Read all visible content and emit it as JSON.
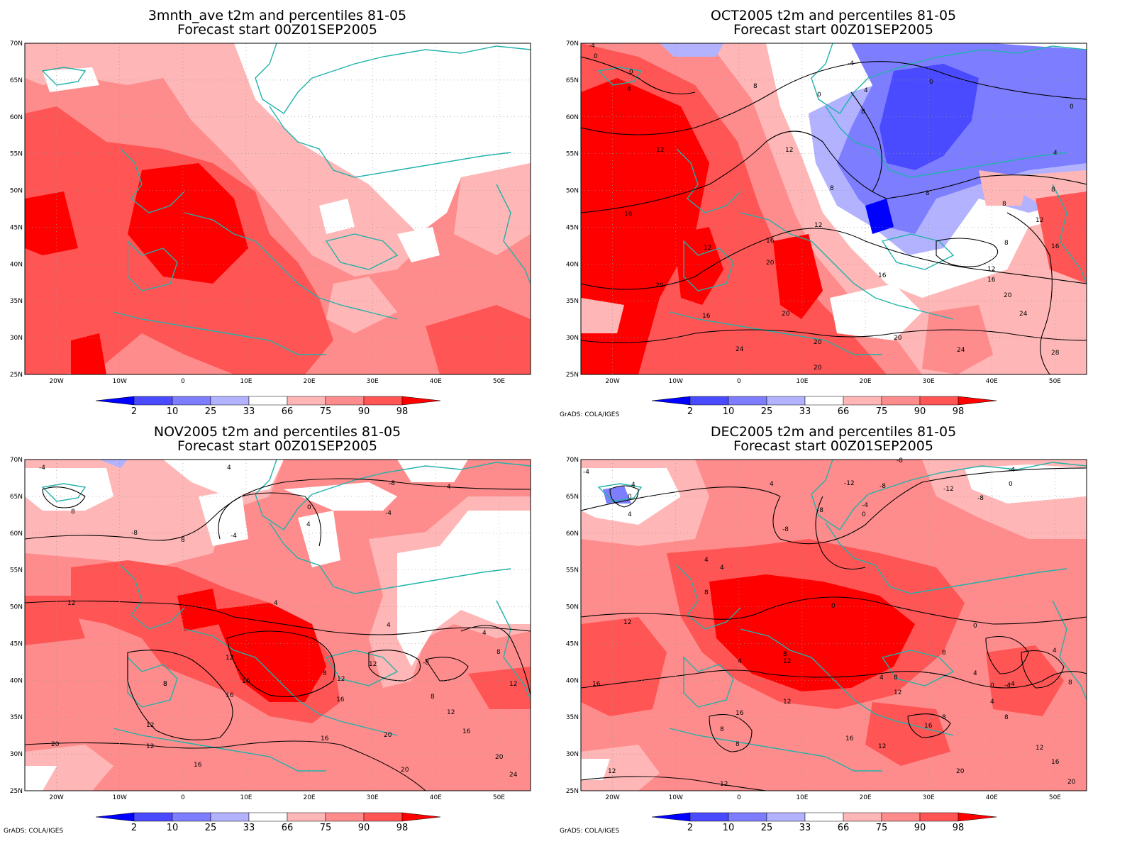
{
  "legend": {
    "labels": [
      "2",
      "10",
      "25",
      "33",
      "66",
      "75",
      "90",
      "98"
    ],
    "colors": [
      "#0000ff",
      "#4a4aff",
      "#7d7dff",
      "#b2b2ff",
      "#ffffff",
      "#ffb6b6",
      "#ff8c8c",
      "#ff5555",
      "#ff0000"
    ]
  },
  "credit": "GrADS: COLA/IGES",
  "lat_labels": [
    "70N",
    "65N",
    "60N",
    "55N",
    "50N",
    "45N",
    "40N",
    "35N",
    "30N",
    "25N"
  ],
  "lon_labels": [
    "20W",
    "10W",
    "0",
    "10E",
    "20E",
    "30E",
    "40E",
    "50E"
  ],
  "panels": [
    {
      "id": "3mnth",
      "title1": "3mnth_ave t2m and percentiles 81-05",
      "title2": "Forecast start 00Z01SEP2005",
      "show_credit": false,
      "contour_labels": []
    },
    {
      "id": "oct",
      "title1": "OCT2005 t2m and percentiles 81-05",
      "title2": "Forecast start 00Z01SEP2005",
      "show_credit": true,
      "contour_labels": [
        "0",
        "-4",
        "0",
        "4",
        "8",
        "0",
        "4",
        "8",
        "0",
        "4",
        "8",
        "12",
        "12",
        "16",
        "16",
        "12",
        "20",
        "20",
        "16",
        "12",
        "20",
        "24",
        "20",
        "20",
        "20",
        "24",
        "28",
        "8",
        "8",
        "8",
        "12",
        "16",
        "12",
        "16",
        "20",
        "24",
        "-4",
        "0",
        "16",
        "8"
      ]
    },
    {
      "id": "nov",
      "title1": "NOV2005 t2m and percentiles 81-05",
      "title2": "Forecast start 00Z01SEP2005",
      "show_credit": true,
      "contour_labels": [
        "-4",
        "4",
        "8",
        "8",
        "-8",
        "4",
        "-4",
        "0",
        "4",
        "-4",
        "-8",
        "8",
        "4",
        "12",
        "4",
        "8",
        "12",
        "16",
        "16",
        "12",
        "16",
        "12",
        "8",
        "12",
        "16",
        "20",
        "20",
        "20",
        "16",
        "12",
        "12",
        "12",
        "4",
        "8",
        "8",
        "16",
        "20",
        "24",
        "-8"
      ]
    },
    {
      "id": "dec",
      "title1": "DEC2005 t2m and percentiles 81-05",
      "title2": "Forecast start 00Z01SEP2005",
      "show_credit": true,
      "contour_labels": [
        "-4",
        "4",
        "0",
        "4",
        "4",
        "-12",
        "-8",
        "-8",
        "-8",
        "-4",
        "0",
        "4",
        "4",
        "-8",
        "-12",
        "-8",
        "-4",
        "0",
        "8",
        "12",
        "4",
        "12",
        "8",
        "12",
        "8",
        "4",
        "8",
        "12",
        "0",
        "4",
        "8",
        "0",
        "8",
        "4",
        "-4",
        "0",
        "4",
        "8",
        "12",
        "16",
        "16",
        "12",
        "16",
        "20",
        "20",
        "12",
        "12",
        "8",
        "16",
        "-4",
        "8",
        "16"
      ]
    }
  ]
}
